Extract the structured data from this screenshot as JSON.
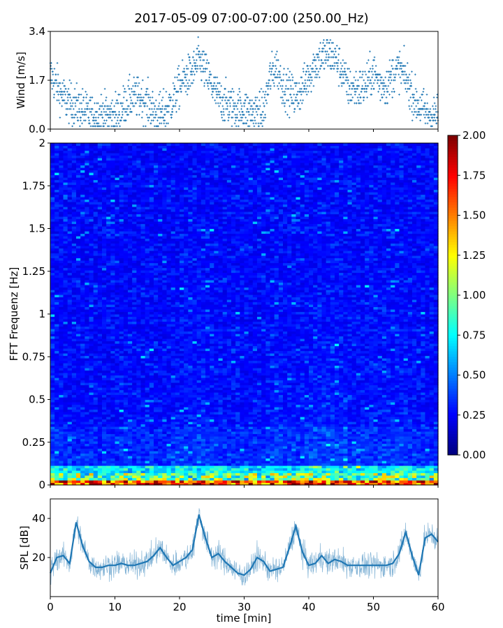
{
  "title": "2017-05-09 07:00-07:00 (250.00_Hz)",
  "chart_data": [
    {
      "id": "wind",
      "type": "scatter",
      "ylabel": "Wind [m/s]",
      "xlim": [
        0,
        60
      ],
      "ylim": [
        0,
        3.4
      ],
      "yticks": [
        0.0,
        1.7,
        3.4
      ],
      "ytick_labels": [
        "0.0",
        "1.7",
        "3.4"
      ],
      "color": "#1f77b4",
      "trend": {
        "x": [
          0,
          1,
          2,
          3,
          4,
          5,
          6,
          7,
          8,
          9,
          10,
          11,
          12,
          13,
          14,
          15,
          16,
          17,
          18,
          19,
          20,
          21,
          22,
          23,
          24,
          25,
          26,
          27,
          28,
          29,
          30,
          31,
          32,
          33,
          34,
          35,
          36,
          37,
          38,
          39,
          40,
          41,
          42,
          43,
          44,
          45,
          46,
          47,
          48,
          49,
          50,
          51,
          52,
          53,
          54,
          55,
          56,
          57,
          58,
          59,
          60
        ],
        "y": [
          1.9,
          1.5,
          1.1,
          0.9,
          0.8,
          0.7,
          0.5,
          0.5,
          0.6,
          0.5,
          0.5,
          0.7,
          1.0,
          1.1,
          1.1,
          0.9,
          0.6,
          0.5,
          0.7,
          1.0,
          1.5,
          1.8,
          2.0,
          2.4,
          2.0,
          1.5,
          1.1,
          0.9,
          0.8,
          0.7,
          0.7,
          0.6,
          0.6,
          0.6,
          1.8,
          2.2,
          1.5,
          1.3,
          1.1,
          1.4,
          1.9,
          2.3,
          2.5,
          2.6,
          2.5,
          2.1,
          1.5,
          1.4,
          1.4,
          1.6,
          2.0,
          1.6,
          1.5,
          1.9,
          2.1,
          1.8,
          1.2,
          0.8,
          0.6,
          0.5,
          0.5
        ]
      }
    },
    {
      "id": "spectrogram",
      "type": "heatmap",
      "ylabel": "FFT Frequenz [Hz]",
      "xlim": [
        0,
        60
      ],
      "ylim": [
        0,
        2
      ],
      "yticks": [
        0,
        0.25,
        0.5,
        0.75,
        1,
        1.25,
        1.5,
        1.75,
        2
      ],
      "ytick_labels": [
        "0",
        "0.25",
        "0.5",
        "0.75",
        "1",
        "1.25",
        "1.5",
        "1.75",
        "2"
      ],
      "colormap": "jet",
      "clim": [
        0,
        2
      ],
      "colorbar_ticks": [
        "0.00",
        "0.25",
        "0.50",
        "0.75",
        "1.00",
        "1.25",
        "1.50",
        "1.75",
        "2.00"
      ]
    },
    {
      "id": "spl",
      "type": "line",
      "ylabel": "SPL [dB]",
      "xlabel": "time [min]",
      "xlim": [
        0,
        60
      ],
      "ylim": [
        0,
        50
      ],
      "yticks": [
        20,
        40
      ],
      "ytick_labels": [
        "20",
        "40"
      ],
      "xticks": [
        0,
        10,
        20,
        30,
        40,
        50,
        60
      ],
      "xtick_labels": [
        "0",
        "10",
        "20",
        "30",
        "40",
        "50",
        "60"
      ],
      "color": "#1f77b4",
      "x": [
        0,
        1,
        2,
        3,
        4,
        5,
        6,
        7,
        8,
        9,
        10,
        11,
        12,
        13,
        14,
        15,
        16,
        17,
        18,
        19,
        20,
        21,
        22,
        23,
        24,
        25,
        26,
        27,
        28,
        29,
        30,
        31,
        32,
        33,
        34,
        35,
        36,
        37,
        38,
        39,
        40,
        41,
        42,
        43,
        44,
        45,
        46,
        47,
        48,
        49,
        50,
        51,
        52,
        53,
        54,
        55,
        56,
        57,
        58,
        59,
        60
      ],
      "y": [
        12,
        20,
        21,
        17,
        38,
        26,
        18,
        15,
        15,
        16,
        16,
        17,
        16,
        16,
        17,
        18,
        21,
        25,
        20,
        16,
        18,
        20,
        24,
        42,
        30,
        20,
        22,
        18,
        15,
        12,
        11,
        14,
        20,
        18,
        13,
        14,
        15,
        25,
        36,
        23,
        16,
        17,
        21,
        17,
        19,
        18,
        16,
        16,
        16,
        16,
        16,
        16,
        16,
        17,
        22,
        33,
        21,
        11,
        30,
        32,
        28
      ]
    }
  ]
}
